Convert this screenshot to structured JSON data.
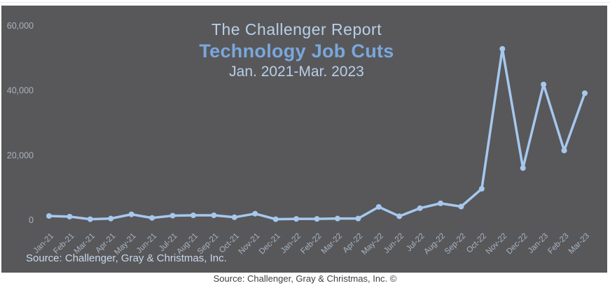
{
  "page": {
    "caption": "Source: Challenger, Gray & Christmas, Inc. ©"
  },
  "chart": {
    "title_line1": "The Challenger Report",
    "title_line2": "Technology Job Cuts",
    "title_line3": "Jan. 2021-Mar. 2023",
    "source_note": "Source: Challenger, Gray & Christmas, Inc.",
    "colors": {
      "card_bg": "#58585a",
      "line": "#a6c8ef",
      "marker": "#a6c8ef",
      "title_accent": "#7aa7dc",
      "title_light": "#b8cfe9",
      "y_axis_text": "#a9b3bd",
      "x_axis_text": "#a6b4c4",
      "source_text": "#c9d8ec",
      "caption_text": "#3f3f3f"
    }
  },
  "chart_data": {
    "type": "line",
    "title": "The Challenger Report — Technology Job Cuts",
    "subtitle": "Jan. 2021-Mar. 2023",
    "xlabel": "",
    "ylabel": "",
    "grid": false,
    "legend": false,
    "marker": "circle",
    "ylim": [
      0,
      60000
    ],
    "y_ticks": [
      {
        "value": 0,
        "label": "0"
      },
      {
        "value": 20000,
        "label": "20,000"
      },
      {
        "value": 40000,
        "label": "40,000"
      },
      {
        "value": 60000,
        "label": "60,000"
      }
    ],
    "categories": [
      "Jan-21",
      "Feb-21",
      "Mar-21",
      "Apr-21",
      "May-21",
      "Jun-21",
      "Jul-21",
      "Aug-21",
      "Sep-21",
      "Oct-21",
      "Nov-21",
      "Dec-21",
      "Jan-22",
      "Feb-22",
      "Mar-22",
      "Apr-22",
      "May-22",
      "Jun-22",
      "Jul-22",
      "Aug-22",
      "Sep-22",
      "Oct-22",
      "Nov-22",
      "Dec-22",
      "Jan-23",
      "Feb-23",
      "Mar-23"
    ],
    "values": [
      1200,
      1000,
      200,
      400,
      1700,
      600,
      1300,
      1400,
      1400,
      800,
      1900,
      200,
      300,
      300,
      400,
      400,
      4000,
      1100,
      3600,
      5100,
      4100,
      9600,
      52800,
      16000,
      41800,
      21400,
      39100
    ],
    "values_note": "approximate, read from plot; y-axis in number of announced job cuts"
  }
}
